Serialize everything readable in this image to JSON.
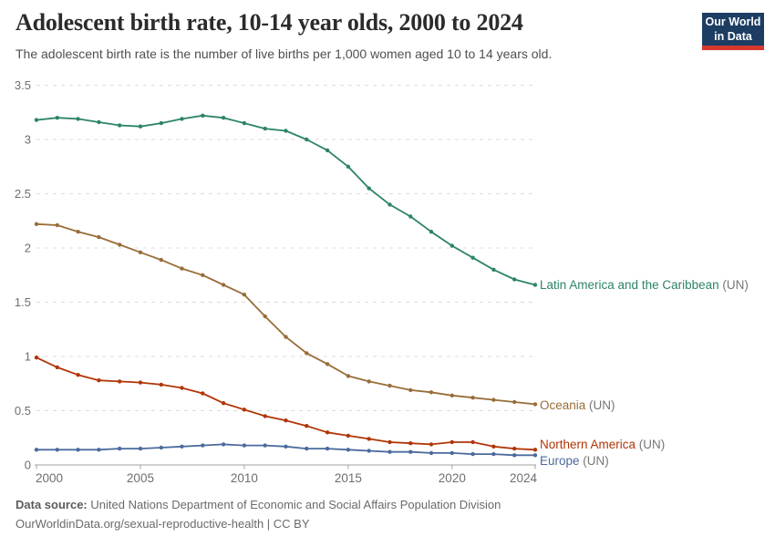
{
  "header": {
    "title": "Adolescent birth rate, 10-14 year olds, 2000 to 2024",
    "subtitle": "The adolescent birth rate is the number of live births per 1,000 women aged 10 to 14 years old.",
    "logo": {
      "line1": "Our World",
      "line2": "in Data",
      "bg_color": "#1d3d63",
      "stripe_color": "#d7382e"
    }
  },
  "chart_data": {
    "type": "line",
    "title": "Adolescent birth rate, 10-14 year olds, 2000 to 2024",
    "xlabel": "",
    "ylabel": "",
    "x": [
      2000,
      2001,
      2002,
      2003,
      2004,
      2005,
      2006,
      2007,
      2008,
      2009,
      2010,
      2011,
      2012,
      2013,
      2014,
      2015,
      2016,
      2017,
      2018,
      2019,
      2020,
      2021,
      2022,
      2023,
      2024
    ],
    "series": [
      {
        "name": "Latin America and the Caribbean",
        "suffix": " (UN)",
        "color": "#2C8465",
        "values": [
          3.18,
          3.2,
          3.19,
          3.16,
          3.13,
          3.12,
          3.15,
          3.19,
          3.22,
          3.2,
          3.15,
          3.1,
          3.08,
          3.0,
          2.9,
          2.75,
          2.55,
          2.4,
          2.29,
          2.15,
          2.02,
          1.91,
          1.8,
          1.71,
          1.66
        ]
      },
      {
        "name": "Oceania",
        "suffix": " (UN)",
        "color": "#996D39",
        "values": [
          2.22,
          2.21,
          2.15,
          2.1,
          2.03,
          1.96,
          1.89,
          1.81,
          1.75,
          1.66,
          1.57,
          1.37,
          1.18,
          1.03,
          0.93,
          0.82,
          0.77,
          0.73,
          0.69,
          0.67,
          0.64,
          0.62,
          0.6,
          0.58,
          0.56
        ]
      },
      {
        "name": "Northern America",
        "suffix": " (UN)",
        "color": "#B13507",
        "values": [
          0.99,
          0.9,
          0.83,
          0.78,
          0.77,
          0.76,
          0.74,
          0.71,
          0.66,
          0.57,
          0.51,
          0.45,
          0.41,
          0.36,
          0.3,
          0.27,
          0.24,
          0.21,
          0.2,
          0.19,
          0.21,
          0.21,
          0.17,
          0.15,
          0.14
        ]
      },
      {
        "name": "Europe",
        "suffix": " (UN)",
        "color": "#4C6A9C",
        "values": [
          0.14,
          0.14,
          0.14,
          0.14,
          0.15,
          0.15,
          0.16,
          0.17,
          0.18,
          0.19,
          0.18,
          0.18,
          0.17,
          0.15,
          0.15,
          0.14,
          0.13,
          0.12,
          0.12,
          0.11,
          0.11,
          0.1,
          0.1,
          0.09,
          0.09
        ]
      }
    ],
    "ylim": [
      0,
      3.5
    ],
    "yticks": [
      0,
      0.5,
      1,
      1.5,
      2,
      2.5,
      3,
      3.5
    ],
    "xticks": [
      2000,
      2005,
      2010,
      2015,
      2020,
      2024
    ],
    "grid": "horizontal-dashed",
    "legend_position": "end-of-line-labels",
    "suffix_color": "#767676"
  },
  "footer": {
    "source_label": "Data source:",
    "source_text": "United Nations Department of Economic and Social Affairs Population Division",
    "link_text": "OurWorldinData.org/sexual-reproductive-health | CC BY"
  }
}
